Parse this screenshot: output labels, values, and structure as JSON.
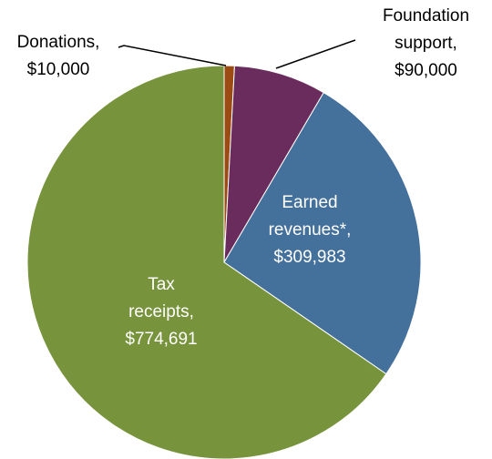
{
  "chart_data": {
    "type": "pie",
    "categories": [
      "Donations,",
      "Foundation support,",
      "Earned revenues*,",
      "Tax receipts,"
    ],
    "values": [
      10000,
      90000,
      309983,
      774691
    ],
    "value_labels": [
      "$10,000",
      "$90,000",
      "$309,983",
      "$774,691"
    ],
    "colors": [
      "#9c4b12",
      "#6a2c5c",
      "#44709c",
      "#77933c"
    ]
  }
}
